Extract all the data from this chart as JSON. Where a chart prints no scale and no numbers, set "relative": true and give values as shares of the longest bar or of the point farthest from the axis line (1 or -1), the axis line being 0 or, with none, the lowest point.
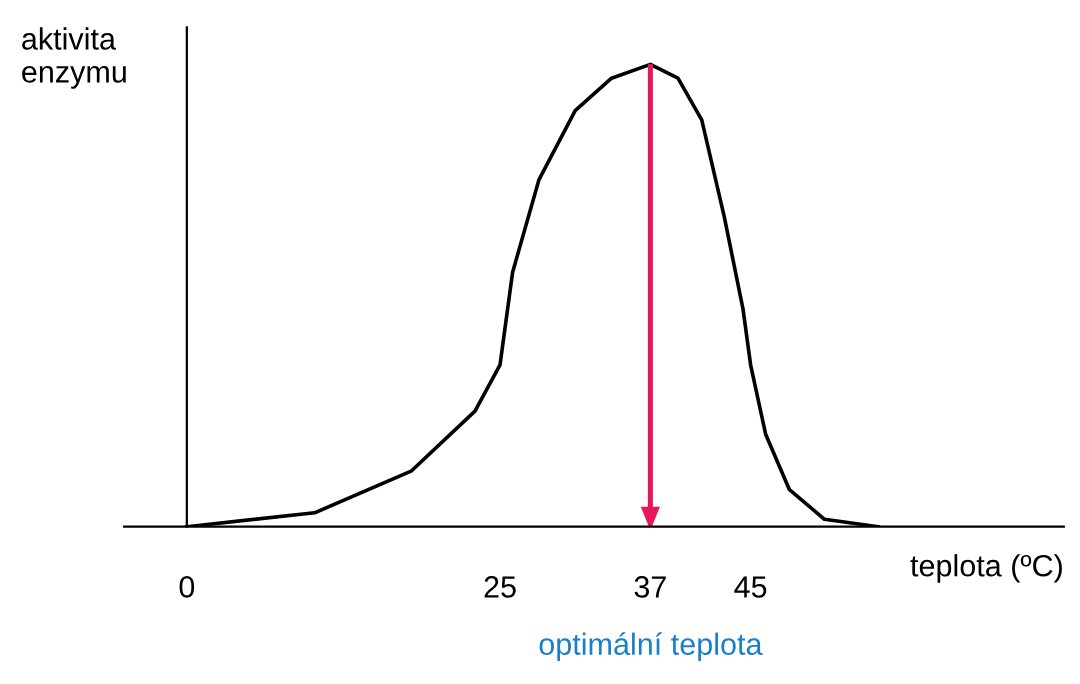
{
  "chart_data": {
    "type": "line",
    "relative": true,
    "ylabel": "aktivita\nenzymu",
    "xlabel": "teplota (ºC)",
    "x": [
      0,
      10.2,
      17.9,
      23,
      25,
      26,
      28.1,
      31,
      33.9,
      37,
      39.2,
      41.1,
      42.9,
      44.4,
      45,
      46.2,
      48.1,
      50.9,
      55.2
    ],
    "series": [
      {
        "color": "#000000",
        "values": [
          0,
          0.03,
          0.12,
          0.25,
          0.35,
          0.55,
          0.75,
          0.9,
          0.97,
          1,
          0.97,
          0.88,
          0.67,
          0.47,
          0.35,
          0.2,
          0.08,
          0.016,
          0
        ]
      }
    ],
    "xlim": [
      -5,
      70
    ],
    "xticks": [
      0,
      25,
      37,
      45
    ],
    "ref_lines": [
      {
        "axis": "x",
        "value": 37,
        "color": "#e8175d"
      }
    ],
    "annotations": [
      "optimální teplota"
    ],
    "grid": false,
    "legend": false,
    "marker": "none",
    "line_style": "solid"
  }
}
